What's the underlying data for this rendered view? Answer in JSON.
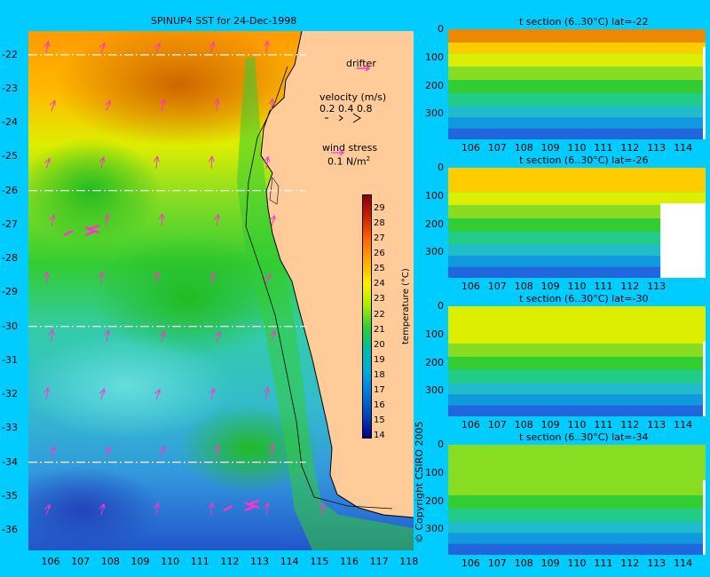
{
  "map": {
    "title": "SPINUP4 SST for 24-Dec-1998",
    "lat_ticks": [
      "-22",
      "-23",
      "-24",
      "-25",
      "-26",
      "-27",
      "-28",
      "-29",
      "-30",
      "-31",
      "-32",
      "-33",
      "-34",
      "-35",
      "-36"
    ],
    "lon_ticks": [
      "106",
      "107",
      "108",
      "109",
      "110",
      "111",
      "112",
      "113",
      "114",
      "115",
      "116",
      "117",
      "118"
    ],
    "section_lines_lat": [
      -22,
      -26,
      -30,
      -34
    ],
    "legend": {
      "drifter": "drifter",
      "velocity_title": "velocity (m/s)",
      "velocity_scale": "0.2 0.4 0.8",
      "wind_title": "wind stress",
      "wind_scale": "0.1 N/m",
      "wind_sup": "2",
      "arrow_color": "#ff33cc"
    },
    "colorbar": {
      "ticks": [
        "29",
        "28",
        "27",
        "26",
        "25",
        "24",
        "23",
        "22",
        "21",
        "20",
        "19",
        "18",
        "17",
        "16",
        "15",
        "14"
      ],
      "label": "temperature (°C)",
      "min": 14,
      "max": 30
    },
    "copyright": "© Copyright CSIRO 2005",
    "colors": {
      "land": "#ffcc99",
      "background": "#00ccff",
      "coast": "#000000"
    }
  },
  "sections": [
    {
      "title": "t section (6..30°C) lat=-22",
      "x_ticks": [
        "106",
        "107",
        "108",
        "109",
        "110",
        "111",
        "112",
        "113",
        "114"
      ],
      "y_ticks": [
        "0",
        "100",
        "200",
        "300"
      ]
    },
    {
      "title": "t section (6..30°C) lat=-26",
      "x_ticks": [
        "106",
        "107",
        "108",
        "109",
        "110",
        "111",
        "112",
        "113"
      ],
      "y_ticks": [
        "0",
        "100",
        "200",
        "300"
      ]
    },
    {
      "title": "t section (6..30°C) lat=-30",
      "x_ticks": [
        "106",
        "107",
        "108",
        "109",
        "110",
        "111",
        "112",
        "113",
        "114"
      ],
      "y_ticks": [
        "0",
        "100",
        "200",
        "300"
      ]
    },
    {
      "title": "t section (6..30°C) lat=-34",
      "x_ticks": [
        "106",
        "107",
        "108",
        "109",
        "110",
        "111",
        "112",
        "113",
        "114"
      ],
      "y_ticks": [
        "0",
        "100",
        "200",
        "300"
      ]
    }
  ]
}
